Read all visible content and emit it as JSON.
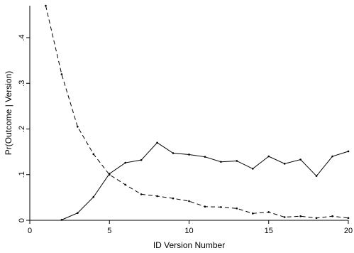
{
  "chart_data": {
    "type": "line",
    "xlabel": "ID Version Number",
    "ylabel": "Pr(Outcome | Version)",
    "xlim": [
      0,
      20
    ],
    "ylim": [
      0,
      0.47
    ],
    "xticks": [
      0,
      5,
      10,
      15,
      20
    ],
    "xtick_labels": [
      "0",
      "5",
      "10",
      "15",
      "20"
    ],
    "yticks": [
      0,
      0.1,
      0.2,
      0.3,
      0.4
    ],
    "ytick_labels": [
      "0",
      ".1",
      ".2",
      ".3",
      ".4"
    ],
    "grid": false,
    "series": [
      {
        "style": "dashed",
        "color": "#000000",
        "x": [
          1,
          2,
          3,
          4,
          5,
          6,
          7,
          8,
          9,
          10,
          11,
          12,
          13,
          14,
          15,
          16,
          17,
          18,
          19,
          20
        ],
        "y": [
          0.47,
          0.32,
          0.205,
          0.145,
          0.1,
          0.078,
          0.057,
          0.053,
          0.048,
          0.042,
          0.03,
          0.029,
          0.026,
          0.015,
          0.018,
          0.007,
          0.009,
          0.005,
          0.009,
          0.005
        ]
      },
      {
        "style": "solid",
        "color": "#000000",
        "x": [
          2,
          3,
          4,
          5,
          6,
          7,
          8,
          9,
          10,
          11,
          12,
          13,
          14,
          15,
          16,
          17,
          18,
          19,
          20
        ],
        "y": [
          0.001,
          0.016,
          0.051,
          0.102,
          0.126,
          0.132,
          0.17,
          0.147,
          0.144,
          0.139,
          0.128,
          0.13,
          0.113,
          0.14,
          0.124,
          0.133,
          0.097,
          0.14,
          0.151
        ]
      }
    ]
  }
}
